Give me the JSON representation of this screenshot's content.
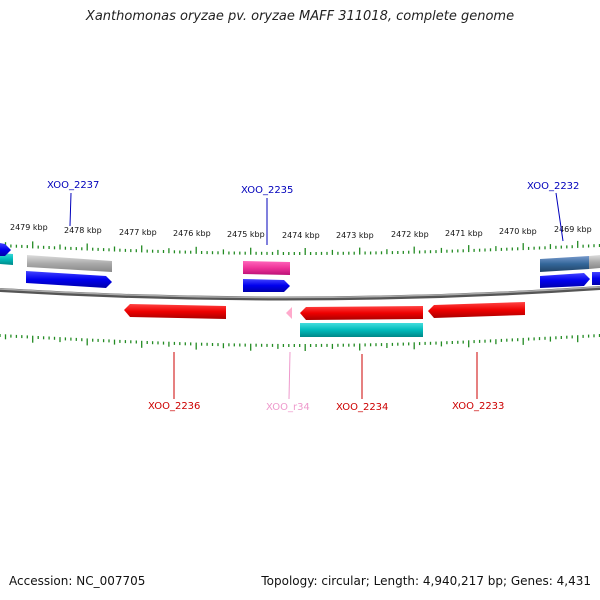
{
  "title": "Xanthomonas oryzae pv. oryzae MAFF 311018, complete genome",
  "footer": {
    "accession": "Accession: NC_007705",
    "summary": "Topology: circular; Length: 4,940,217 bp; Genes: 4,431"
  },
  "colors": {
    "cds_forward": "#0000ee",
    "cds_reverse": "#ee0000",
    "gene_forward": "#aaaaaa",
    "gene_reverse": "#00bbbb",
    "rna": "#ee3399",
    "rna_label": "#ee99cc",
    "tick": "#228b22",
    "backbone": "#888888"
  },
  "tick_labels": [
    "2479 kbp",
    "2478 kbp",
    "2477 kbp",
    "2476 kbp",
    "2475 kbp",
    "2474 kbp",
    "2473 kbp",
    "2472 kbp",
    "2471 kbp",
    "2470 kbp",
    "2469 kbp"
  ],
  "gene_labels_top": [
    "XOO_2237",
    "XOO_2235",
    "XOO_2232"
  ],
  "gene_labels_bottom": [
    "XOO_2236",
    "XOO_r34",
    "XOO_2234",
    "XOO_2233"
  ]
}
